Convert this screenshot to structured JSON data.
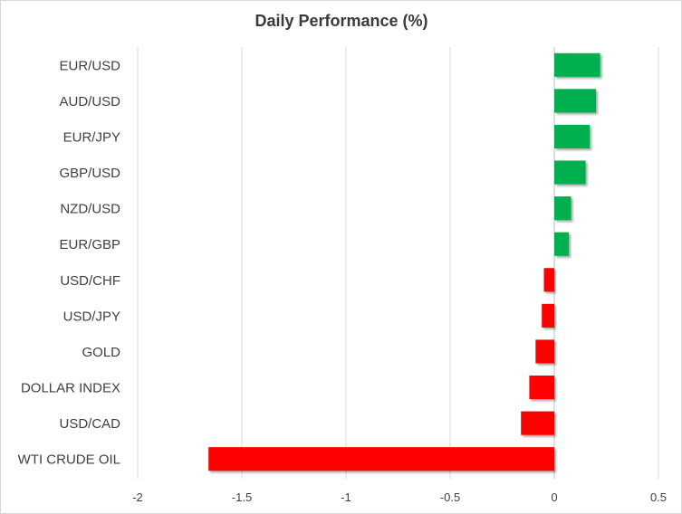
{
  "chart_data": {
    "type": "bar",
    "orientation": "horizontal",
    "title": "Daily Performance (%)",
    "xlabel": "",
    "ylabel": "",
    "categories": [
      "EUR/USD",
      "AUD/USD",
      "EUR/JPY",
      "GBP/USD",
      "NZD/USD",
      "EUR/GBP",
      "USD/CHF",
      "USD/JPY",
      "GOLD",
      "DOLLAR INDEX",
      "USD/CAD",
      "WTI CRUDE OIL"
    ],
    "values": [
      0.22,
      0.2,
      0.17,
      0.15,
      0.08,
      0.07,
      -0.05,
      -0.06,
      -0.09,
      -0.12,
      -0.16,
      -1.66
    ],
    "xlim": [
      -2,
      0.5
    ],
    "xticks": [
      -2,
      -1.5,
      -1,
      -0.5,
      0,
      0.5
    ],
    "xtick_labels": [
      "-2",
      "-1.5",
      "-1",
      "-0.5",
      "0",
      "0.5"
    ],
    "grid": true,
    "legend": "none",
    "colors": {
      "positive": "#00b050",
      "negative": "#ff0000"
    }
  }
}
